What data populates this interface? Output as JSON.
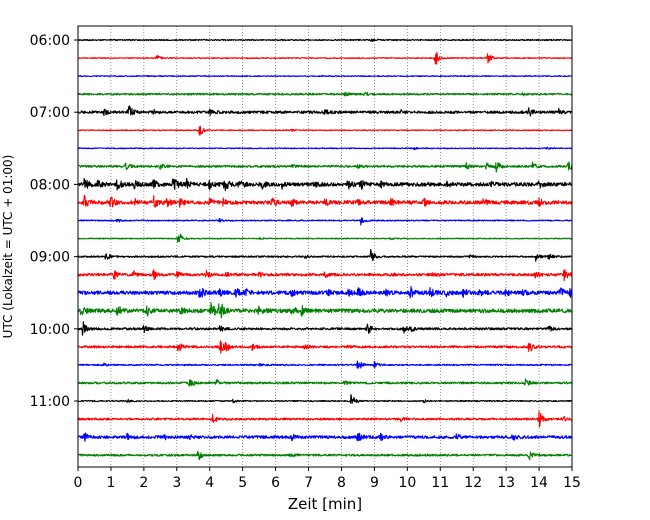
{
  "chart_data": {
    "type": "line",
    "title": "",
    "xlabel": "Zeit  [min]",
    "ylabel": "UTC (Lokalzeit = UTC + 01:00)",
    "xlim": [
      0,
      15
    ],
    "x_ticks": [
      "0",
      "1",
      "2",
      "3",
      "4",
      "5",
      "6",
      "7",
      "8",
      "9",
      "10",
      "11",
      "12",
      "13",
      "14",
      "15"
    ],
    "y_tick_labels": [
      "06:00",
      "07:00",
      "08:00",
      "09:00",
      "10:00",
      "11:00"
    ],
    "grid": "vertical-dotted",
    "trace_colors": [
      "#000000",
      "#ff0000",
      "#0000ff",
      "#008000"
    ],
    "traces": [
      {
        "start": "06:00",
        "color": "#000000",
        "noise": 0.6,
        "events": [
          [
            8.9,
            1.2
          ]
        ]
      },
      {
        "start": "06:15",
        "color": "#ff0000",
        "noise": 0.5,
        "events": [
          [
            2.4,
            2.5
          ],
          [
            10.85,
            9
          ],
          [
            12.45,
            6
          ]
        ]
      },
      {
        "start": "06:30",
        "color": "#0000ff",
        "noise": 0.5,
        "events": []
      },
      {
        "start": "06:45",
        "color": "#008000",
        "noise": 0.9,
        "events": [
          [
            8.1,
            1.5
          ],
          [
            8.7,
            1.5
          ],
          [
            13.5,
            1.2
          ]
        ]
      },
      {
        "start": "07:00",
        "color": "#000000",
        "noise": 1.3,
        "events": [
          [
            1.55,
            7
          ],
          [
            0.8,
            2.5
          ],
          [
            2.3,
            2
          ],
          [
            4.0,
            2.5
          ],
          [
            7.5,
            2
          ],
          [
            9.8,
            2
          ],
          [
            13.7,
            4
          ],
          [
            14.6,
            3
          ]
        ]
      },
      {
        "start": "07:15",
        "color": "#ff0000",
        "noise": 0.5,
        "events": [
          [
            3.7,
            6
          ],
          [
            6.5,
            1.2
          ]
        ]
      },
      {
        "start": "07:30",
        "color": "#0000ff",
        "noise": 0.5,
        "events": [
          [
            10.2,
            1.3
          ],
          [
            14.2,
            1.3
          ]
        ]
      },
      {
        "start": "07:45",
        "color": "#008000",
        "noise": 1.0,
        "events": [
          [
            1.45,
            6
          ],
          [
            2.5,
            2
          ],
          [
            6.5,
            1.5
          ],
          [
            8.5,
            1.5
          ],
          [
            11.8,
            2.5
          ],
          [
            12.4,
            3.5
          ],
          [
            12.7,
            6
          ],
          [
            13.8,
            4
          ],
          [
            14.9,
            5
          ]
        ]
      },
      {
        "start": "08:00",
        "color": "#000000",
        "noise": 1.8,
        "events": [
          [
            0.2,
            6
          ],
          [
            0.6,
            3
          ],
          [
            1.2,
            6
          ],
          [
            1.7,
            4
          ],
          [
            2.3,
            4
          ],
          [
            2.9,
            8
          ],
          [
            3.3,
            4
          ],
          [
            4.0,
            5
          ],
          [
            4.45,
            7
          ],
          [
            4.9,
            5
          ],
          [
            5.6,
            3
          ],
          [
            6.2,
            3
          ],
          [
            7.2,
            3
          ],
          [
            8.2,
            6
          ],
          [
            8.6,
            4
          ],
          [
            9.2,
            3
          ],
          [
            11.2,
            2
          ],
          [
            12.5,
            3
          ],
          [
            14.0,
            3
          ]
        ]
      },
      {
        "start": "08:15",
        "color": "#ff0000",
        "noise": 1.8,
        "events": [
          [
            0.2,
            6
          ],
          [
            1.0,
            5
          ],
          [
            1.7,
            4
          ],
          [
            2.3,
            6
          ],
          [
            2.7,
            4
          ],
          [
            3.1,
            4
          ],
          [
            4.0,
            3
          ],
          [
            4.4,
            3
          ],
          [
            5.9,
            5
          ],
          [
            6.5,
            3
          ],
          [
            7.5,
            3
          ],
          [
            8.5,
            3
          ],
          [
            9.5,
            3
          ],
          [
            10.5,
            3
          ],
          [
            12.3,
            3
          ],
          [
            14.0,
            3
          ]
        ]
      },
      {
        "start": "08:30",
        "color": "#0000ff",
        "noise": 0.6,
        "events": [
          [
            8.6,
            6
          ],
          [
            1.2,
            1.5
          ],
          [
            4.3,
            1.5
          ]
        ]
      },
      {
        "start": "08:45",
        "color": "#008000",
        "noise": 0.5,
        "events": [
          [
            3.05,
            8
          ],
          [
            5.5,
            1.2
          ],
          [
            9.5,
            1.2
          ]
        ]
      },
      {
        "start": "09:00",
        "color": "#000000",
        "noise": 0.8,
        "events": [
          [
            0.85,
            6
          ],
          [
            8.9,
            8
          ],
          [
            13.9,
            4
          ],
          [
            14.3,
            3
          ],
          [
            6.9,
            1.5
          ],
          [
            11.9,
            1.5
          ]
        ]
      },
      {
        "start": "09:15",
        "color": "#ff0000",
        "noise": 1.3,
        "events": [
          [
            1.1,
            4
          ],
          [
            1.7,
            4
          ],
          [
            2.3,
            5
          ],
          [
            3.0,
            3
          ],
          [
            3.9,
            3
          ],
          [
            4.5,
            3
          ],
          [
            5.5,
            2.5
          ],
          [
            7.5,
            2.5
          ],
          [
            9.5,
            2.5
          ],
          [
            10.8,
            2.5
          ],
          [
            13.9,
            3
          ],
          [
            14.75,
            7
          ]
        ]
      },
      {
        "start": "09:30",
        "color": "#0000ff",
        "noise": 1.8,
        "events": [
          [
            3.7,
            7
          ],
          [
            4.3,
            3
          ],
          [
            4.8,
            4
          ],
          [
            5.1,
            3
          ],
          [
            6.5,
            3
          ],
          [
            7.6,
            3
          ],
          [
            8.2,
            3
          ],
          [
            8.5,
            4
          ],
          [
            9.3,
            4
          ],
          [
            10.1,
            6
          ],
          [
            10.7,
            4
          ],
          [
            11.2,
            3
          ],
          [
            11.7,
            4
          ],
          [
            12.2,
            3
          ],
          [
            13.0,
            3
          ],
          [
            13.5,
            3
          ],
          [
            14.65,
            7
          ],
          [
            14.95,
            4
          ]
        ]
      },
      {
        "start": "09:45",
        "color": "#008000",
        "noise": 1.9,
        "events": [
          [
            0.1,
            4
          ],
          [
            1.2,
            5
          ],
          [
            2.1,
            4
          ],
          [
            3.1,
            3
          ],
          [
            4.05,
            10
          ],
          [
            4.3,
            10
          ],
          [
            5.5,
            4
          ],
          [
            6.5,
            4
          ],
          [
            6.8,
            5
          ]
        ]
      },
      {
        "start": "10:00",
        "color": "#000000",
        "noise": 1.1,
        "events": [
          [
            0.15,
            7
          ],
          [
            2.0,
            3
          ],
          [
            4.3,
            3
          ],
          [
            8.8,
            6
          ],
          [
            9.9,
            4
          ],
          [
            10.1,
            3
          ],
          [
            14.3,
            3
          ]
        ]
      },
      {
        "start": "10:15",
        "color": "#ff0000",
        "noise": 1.1,
        "events": [
          [
            3.05,
            5
          ],
          [
            4.3,
            9
          ],
          [
            4.5,
            4
          ],
          [
            5.3,
            3
          ],
          [
            6.9,
            3
          ],
          [
            8.2,
            2
          ],
          [
            13.7,
            6
          ]
        ]
      },
      {
        "start": "10:30",
        "color": "#0000ff",
        "noise": 0.7,
        "events": [
          [
            8.5,
            7
          ],
          [
            9.0,
            3
          ],
          [
            0.8,
            1.5
          ],
          [
            5.5,
            1.5
          ]
        ]
      },
      {
        "start": "10:45",
        "color": "#008000",
        "noise": 1.0,
        "events": [
          [
            3.4,
            5
          ],
          [
            4.2,
            3
          ],
          [
            8.1,
            2
          ],
          [
            13.6,
            5
          ]
        ]
      },
      {
        "start": "11:00",
        "color": "#000000",
        "noise": 0.6,
        "events": [
          [
            8.3,
            7
          ],
          [
            1.5,
            1.5
          ],
          [
            4.7,
            1.5
          ],
          [
            10.5,
            1.5
          ]
        ]
      },
      {
        "start": "11:15",
        "color": "#ff0000",
        "noise": 1.0,
        "events": [
          [
            4.1,
            5
          ],
          [
            14.0,
            8
          ],
          [
            14.7,
            3
          ],
          [
            9.8,
            2
          ]
        ]
      },
      {
        "start": "11:30",
        "color": "#0000ff",
        "noise": 1.4,
        "events": [
          [
            0.2,
            4
          ],
          [
            1.5,
            3
          ],
          [
            2.6,
            3
          ],
          [
            3.4,
            3
          ],
          [
            6.5,
            3
          ],
          [
            8.5,
            5
          ],
          [
            9.2,
            3
          ],
          [
            11.5,
            3
          ],
          [
            13.2,
            3
          ]
        ]
      },
      {
        "start": "11:45",
        "color": "#008000",
        "noise": 1.0,
        "events": [
          [
            3.65,
            6
          ],
          [
            6.5,
            2
          ],
          [
            13.7,
            4
          ]
        ]
      }
    ]
  }
}
